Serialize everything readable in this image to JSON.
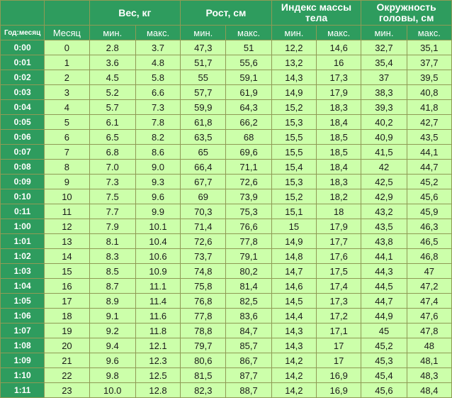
{
  "headers": {
    "groups": [
      "Вес, кг",
      "Рост, см",
      "Индекс массы тела",
      "Окружность головы, см"
    ],
    "age_label": "Год:месяц",
    "month_label": "Месяц",
    "min_label": "мин.",
    "max_label": "макс."
  },
  "rows": [
    {
      "age": "0:00",
      "month": "0",
      "w_min": "2.8",
      "w_max": "3.7",
      "h_min": "47,3",
      "h_max": "51",
      "b_min": "12,2",
      "b_max": "14,6",
      "c_min": "32,7",
      "c_max": "35,1"
    },
    {
      "age": "0:01",
      "month": "1",
      "w_min": "3.6",
      "w_max": "4.8",
      "h_min": "51,7",
      "h_max": "55,6",
      "b_min": "13,2",
      "b_max": "16",
      "c_min": "35,4",
      "c_max": "37,7"
    },
    {
      "age": "0:02",
      "month": "2",
      "w_min": "4.5",
      "w_max": "5.8",
      "h_min": "55",
      "h_max": "59,1",
      "b_min": "14,3",
      "b_max": "17,3",
      "c_min": "37",
      "c_max": "39,5"
    },
    {
      "age": "0:03",
      "month": "3",
      "w_min": "5.2",
      "w_max": "6.6",
      "h_min": "57,7",
      "h_max": "61,9",
      "b_min": "14,9",
      "b_max": "17,9",
      "c_min": "38,3",
      "c_max": "40,8"
    },
    {
      "age": "0:04",
      "month": "4",
      "w_min": "5.7",
      "w_max": "7.3",
      "h_min": "59,9",
      "h_max": "64,3",
      "b_min": "15,2",
      "b_max": "18,3",
      "c_min": "39,3",
      "c_max": "41,8"
    },
    {
      "age": "0:05",
      "month": "5",
      "w_min": "6.1",
      "w_max": "7.8",
      "h_min": "61,8",
      "h_max": "66,2",
      "b_min": "15,3",
      "b_max": "18,4",
      "c_min": "40,2",
      "c_max": "42,7"
    },
    {
      "age": "0:06",
      "month": "6",
      "w_min": "6.5",
      "w_max": "8.2",
      "h_min": "63,5",
      "h_max": "68",
      "b_min": "15,5",
      "b_max": "18,5",
      "c_min": "40,9",
      "c_max": "43,5"
    },
    {
      "age": "0:07",
      "month": "7",
      "w_min": "6.8",
      "w_max": "8.6",
      "h_min": "65",
      "h_max": "69,6",
      "b_min": "15,5",
      "b_max": "18,5",
      "c_min": "41,5",
      "c_max": "44,1"
    },
    {
      "age": "0:08",
      "month": "8",
      "w_min": "7.0",
      "w_max": "9.0",
      "h_min": "66,4",
      "h_max": "71,1",
      "b_min": "15,4",
      "b_max": "18,4",
      "c_min": "42",
      "c_max": "44,7"
    },
    {
      "age": "0:09",
      "month": "9",
      "w_min": "7.3",
      "w_max": "9.3",
      "h_min": "67,7",
      "h_max": "72,6",
      "b_min": "15,3",
      "b_max": "18,3",
      "c_min": "42,5",
      "c_max": "45,2"
    },
    {
      "age": "0:10",
      "month": "10",
      "w_min": "7.5",
      "w_max": "9.6",
      "h_min": "69",
      "h_max": "73,9",
      "b_min": "15,2",
      "b_max": "18,2",
      "c_min": "42,9",
      "c_max": "45,6"
    },
    {
      "age": "0:11",
      "month": "11",
      "w_min": "7.7",
      "w_max": "9.9",
      "h_min": "70,3",
      "h_max": "75,3",
      "b_min": "15,1",
      "b_max": "18",
      "c_min": "43,2",
      "c_max": "45,9"
    },
    {
      "age": "1:00",
      "month": "12",
      "w_min": "7.9",
      "w_max": "10.1",
      "h_min": "71,4",
      "h_max": "76,6",
      "b_min": "15",
      "b_max": "17,9",
      "c_min": "43,5",
      "c_max": "46,3"
    },
    {
      "age": "1:01",
      "month": "13",
      "w_min": "8.1",
      "w_max": "10.4",
      "h_min": "72,6",
      "h_max": "77,8",
      "b_min": "14,9",
      "b_max": "17,7",
      "c_min": "43,8",
      "c_max": "46,5"
    },
    {
      "age": "1:02",
      "month": "14",
      "w_min": "8.3",
      "w_max": "10.6",
      "h_min": "73,7",
      "h_max": "79,1",
      "b_min": "14,8",
      "b_max": "17,6",
      "c_min": "44,1",
      "c_max": "46,8"
    },
    {
      "age": "1:03",
      "month": "15",
      "w_min": "8.5",
      "w_max": "10.9",
      "h_min": "74,8",
      "h_max": "80,2",
      "b_min": "14,7",
      "b_max": "17,5",
      "c_min": "44,3",
      "c_max": "47"
    },
    {
      "age": "1:04",
      "month": "16",
      "w_min": "8.7",
      "w_max": "11.1",
      "h_min": "75,8",
      "h_max": "81,4",
      "b_min": "14,6",
      "b_max": "17,4",
      "c_min": "44,5",
      "c_max": "47,2"
    },
    {
      "age": "1:05",
      "month": "17",
      "w_min": "8.9",
      "w_max": "11.4",
      "h_min": "76,8",
      "h_max": "82,5",
      "b_min": "14,5",
      "b_max": "17,3",
      "c_min": "44,7",
      "c_max": "47,4"
    },
    {
      "age": "1:06",
      "month": "18",
      "w_min": "9.1",
      "w_max": "11.6",
      "h_min": "77,8",
      "h_max": "83,6",
      "b_min": "14,4",
      "b_max": "17,2",
      "c_min": "44,9",
      "c_max": "47,6"
    },
    {
      "age": "1:07",
      "month": "19",
      "w_min": "9.2",
      "w_max": "11.8",
      "h_min": "78,8",
      "h_max": "84,7",
      "b_min": "14,3",
      "b_max": "17,1",
      "c_min": "45",
      "c_max": "47,8"
    },
    {
      "age": "1:08",
      "month": "20",
      "w_min": "9.4",
      "w_max": "12.1",
      "h_min": "79,7",
      "h_max": "85,7",
      "b_min": "14,3",
      "b_max": "17",
      "c_min": "45,2",
      "c_max": "48"
    },
    {
      "age": "1:09",
      "month": "21",
      "w_min": "9.6",
      "w_max": "12.3",
      "h_min": "80,6",
      "h_max": "86,7",
      "b_min": "14,2",
      "b_max": "17",
      "c_min": "45,3",
      "c_max": "48,1"
    },
    {
      "age": "1:10",
      "month": "22",
      "w_min": "9.8",
      "w_max": "12.5",
      "h_min": "81,5",
      "h_max": "87,7",
      "b_min": "14,2",
      "b_max": "16,9",
      "c_min": "45,4",
      "c_max": "48,3"
    },
    {
      "age": "1:11",
      "month": "23",
      "w_min": "10.0",
      "w_max": "12.8",
      "h_min": "82,3",
      "h_max": "88,7",
      "b_min": "14,2",
      "b_max": "16,9",
      "c_min": "45,6",
      "c_max": "48,4"
    }
  ]
}
